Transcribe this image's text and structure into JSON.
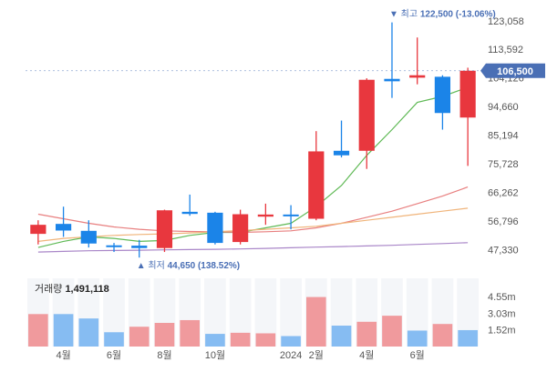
{
  "chart_data": {
    "type": "candlestick",
    "price": {
      "ylim": [
        42000,
        127500
      ],
      "ticks": [
        "123,058",
        "113,592",
        "104,126",
        "94,660",
        "85,194",
        "75,728",
        "66,262",
        "56,796",
        "47,330"
      ],
      "tick_values": [
        123058,
        113592,
        104126,
        94660,
        85194,
        75728,
        66262,
        56796,
        47330
      ],
      "current_value_label": "106,500",
      "current_value": 106500,
      "high_annotation": {
        "prefix": "▼ 최고",
        "value_text": "122,500 (-13.06%)",
        "value": 122500,
        "candle_index": 14
      },
      "low_annotation": {
        "prefix": "▲ 최저",
        "value_text": "44,650 (138.52%)",
        "value": 44650,
        "candle_index": 4
      },
      "candles": [
        {
          "o": 52500,
          "h": 57000,
          "l": 49000,
          "c": 55500,
          "color": "up"
        },
        {
          "o": 55800,
          "h": 61500,
          "l": 51500,
          "c": 53600,
          "color": "down"
        },
        {
          "o": 53500,
          "h": 57000,
          "l": 48000,
          "c": 49300,
          "color": "down"
        },
        {
          "o": 48700,
          "h": 49500,
          "l": 46500,
          "c": 48200,
          "color": "down"
        },
        {
          "o": 48600,
          "h": 50500,
          "l": 44650,
          "c": 47800,
          "color": "down"
        },
        {
          "o": 47800,
          "h": 60500,
          "l": 46500,
          "c": 60300,
          "color": "up"
        },
        {
          "o": 59800,
          "h": 65500,
          "l": 58500,
          "c": 59100,
          "color": "down"
        },
        {
          "o": 59500,
          "h": 59800,
          "l": 49000,
          "c": 49500,
          "color": "down"
        },
        {
          "o": 49800,
          "h": 60500,
          "l": 49000,
          "c": 59000,
          "color": "up"
        },
        {
          "o": 58200,
          "h": 62500,
          "l": 55500,
          "c": 58900,
          "color": "up"
        },
        {
          "o": 58900,
          "h": 62000,
          "l": 54000,
          "c": 58300,
          "color": "down"
        },
        {
          "o": 57500,
          "h": 86500,
          "l": 57000,
          "c": 79800,
          "color": "up"
        },
        {
          "o": 80000,
          "h": 90000,
          "l": 77800,
          "c": 78500,
          "color": "down"
        },
        {
          "o": 80000,
          "h": 104000,
          "l": 74000,
          "c": 103500,
          "color": "up"
        },
        {
          "o": 103800,
          "h": 122500,
          "l": 97500,
          "c": 103000,
          "color": "down"
        },
        {
          "o": 104200,
          "h": 117500,
          "l": 102000,
          "c": 105000,
          "color": "up"
        },
        {
          "o": 104500,
          "h": 105000,
          "l": 87000,
          "c": 92500,
          "color": "down"
        },
        {
          "o": 91000,
          "h": 107500,
          "l": 75000,
          "c": 106500,
          "color": "up"
        }
      ],
      "moving_averages": [
        {
          "color": "#5fb955",
          "values": [
            48000,
            50000,
            51500,
            51000,
            50000,
            50300,
            52000,
            53000,
            53000,
            54500,
            56000,
            61500,
            68500,
            78500,
            87000,
            96000,
            98000,
            101000
          ]
        },
        {
          "color": "#e87f7f",
          "values": [
            59000,
            57500,
            56000,
            54800,
            54000,
            53500,
            53300,
            53200,
            53000,
            53200,
            53500,
            54500,
            56000,
            58000,
            60000,
            62500,
            65000,
            68000
          ]
        },
        {
          "color": "#f0b47a",
          "values": [
            50000,
            51000,
            51500,
            52000,
            52300,
            52500,
            52800,
            53200,
            53600,
            54000,
            54500,
            55000,
            56000,
            57000,
            58000,
            59000,
            60000,
            61000
          ]
        },
        {
          "color": "#a986c8",
          "values": [
            46500,
            46700,
            46900,
            47000,
            47100,
            47200,
            47300,
            47400,
            47500,
            47700,
            47900,
            48100,
            48300,
            48500,
            48700,
            49000,
            49300,
            49600
          ]
        }
      ]
    },
    "volume": {
      "label": "거래량",
      "value_text": "1,491,118",
      "ylim": [
        0,
        6200000
      ],
      "ticks": [
        "4.55m",
        "3.03m",
        "1.52m"
      ],
      "tick_values": [
        4550000,
        3030000,
        1520000
      ],
      "bars": [
        {
          "v": 2950000,
          "color": "up"
        },
        {
          "v": 2950000,
          "color": "down"
        },
        {
          "v": 2550000,
          "color": "down"
        },
        {
          "v": 1300000,
          "color": "down"
        },
        {
          "v": 1800000,
          "color": "up"
        },
        {
          "v": 2150000,
          "color": "up"
        },
        {
          "v": 2400000,
          "color": "up"
        },
        {
          "v": 1150000,
          "color": "down"
        },
        {
          "v": 1250000,
          "color": "up"
        },
        {
          "v": 1200000,
          "color": "up"
        },
        {
          "v": 950000,
          "color": "down"
        },
        {
          "v": 4500000,
          "color": "up"
        },
        {
          "v": 1900000,
          "color": "down"
        },
        {
          "v": 2250000,
          "color": "up"
        },
        {
          "v": 2800000,
          "color": "up"
        },
        {
          "v": 1450000,
          "color": "down"
        },
        {
          "v": 2050000,
          "color": "up"
        },
        {
          "v": 1491118,
          "color": "down"
        }
      ]
    },
    "x_labels": [
      {
        "text": "4월",
        "index": 1
      },
      {
        "text": "6월",
        "index": 3
      },
      {
        "text": "8월",
        "index": 5
      },
      {
        "text": "10월",
        "index": 7
      },
      {
        "text": "2024",
        "index": 10
      },
      {
        "text": "2월",
        "index": 11
      },
      {
        "text": "4월",
        "index": 13
      },
      {
        "text": "6월",
        "index": 15
      }
    ],
    "colors": {
      "up": "#e8373e",
      "down": "#1b84e8",
      "vol_up": "#f09a9d",
      "vol_down": "#86bcf2",
      "current_badge": "#4a6fb5",
      "annotation": "#4a6fb5"
    }
  }
}
